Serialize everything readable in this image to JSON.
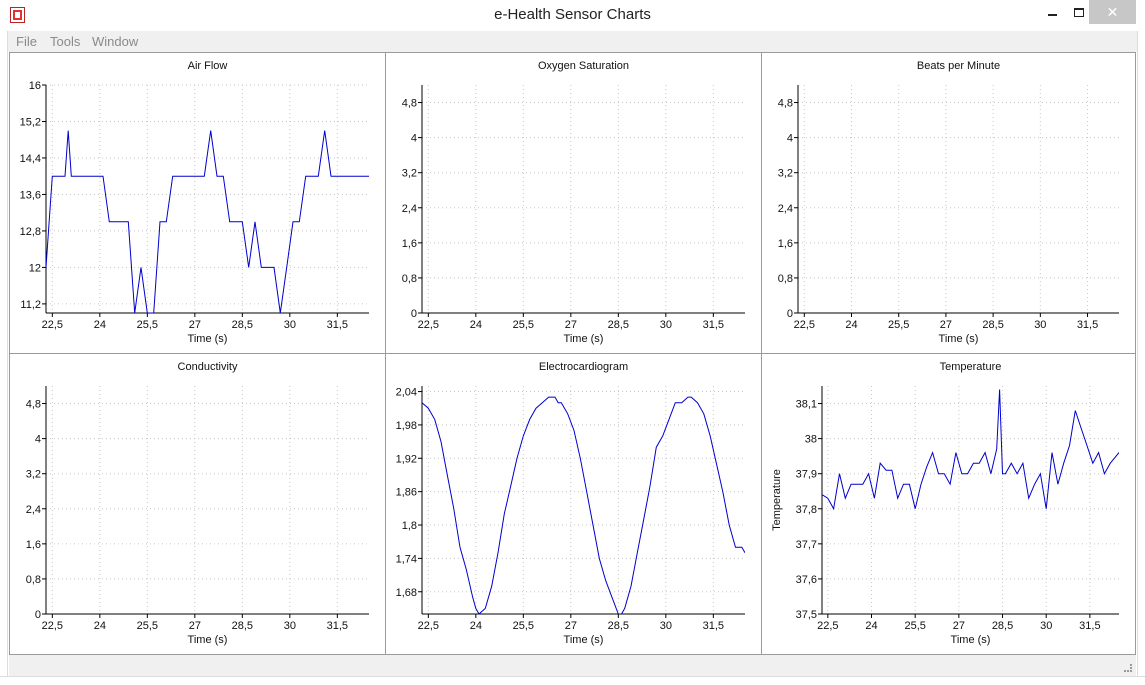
{
  "window": {
    "title": "e-Health Sensor Charts",
    "minimize_icon": "minimize-icon",
    "maximize_icon": "maximize-icon",
    "close_label": "✕"
  },
  "menu": {
    "file": "File",
    "tools": "Tools",
    "window": "Window"
  },
  "colors": {
    "series": "#0000cc",
    "grid": "#c8c8c8"
  },
  "chart_data": [
    {
      "type": "line",
      "title": "Air Flow",
      "xlabel": "Time (s)",
      "ylabel": "",
      "xlim": [
        22.3,
        32.5
      ],
      "ylim": [
        11.0,
        16.0
      ],
      "xticks": [
        22.5,
        24,
        25.5,
        27,
        28.5,
        30,
        31.5
      ],
      "xtick_labels": [
        "22,5",
        "24",
        "25,5",
        "27",
        "28,5",
        "30",
        "31,5"
      ],
      "yticks": [
        11.2,
        12,
        12.8,
        13.6,
        14.4,
        15.2,
        16
      ],
      "ytick_labels": [
        "11,2",
        "12",
        "12,8",
        "13,6",
        "14,4",
        "15,2",
        "16"
      ],
      "grid": true,
      "series": [
        {
          "x": [
            22.3,
            22.5,
            22.9,
            23.0,
            23.1,
            23.3,
            23.5,
            23.7,
            23.9,
            24.1,
            24.3,
            24.5,
            24.7,
            24.9,
            25.1,
            25.3,
            25.5,
            25.6,
            25.7,
            25.9,
            26.1,
            26.3,
            26.5,
            26.7,
            26.9,
            27.1,
            27.3,
            27.5,
            27.7,
            27.8,
            27.9,
            28.1,
            28.3,
            28.5,
            28.7,
            28.9,
            29.1,
            29.2,
            29.3,
            29.5,
            29.7,
            29.9,
            30.1,
            30.3,
            30.5,
            30.7,
            30.9,
            31.1,
            31.3,
            31.5,
            31.6,
            31.7,
            31.9,
            32.1,
            32.3,
            32.5
          ],
          "y": [
            12.0,
            14.0,
            14.0,
            15.0,
            14.0,
            14.0,
            14.0,
            14.0,
            14.0,
            14.0,
            13.0,
            13.0,
            13.0,
            13.0,
            11.0,
            12.0,
            11.0,
            11.0,
            11.0,
            13.0,
            13.0,
            14.0,
            14.0,
            14.0,
            14.0,
            14.0,
            14.0,
            15.0,
            14.0,
            14.0,
            14.0,
            13.0,
            13.0,
            13.0,
            12.0,
            13.0,
            12.0,
            12.0,
            12.0,
            12.0,
            11.0,
            12.0,
            13.0,
            13.0,
            14.0,
            14.0,
            14.0,
            15.0,
            14.0,
            14.0,
            14.0,
            14.0,
            14.0,
            14.0,
            14.0,
            14.0
          ]
        }
      ]
    },
    {
      "type": "line",
      "title": "Oxygen Saturation",
      "xlabel": "Time (s)",
      "ylabel": "",
      "xlim": [
        22.3,
        32.5
      ],
      "ylim": [
        0,
        5.2
      ],
      "xticks": [
        22.5,
        24,
        25.5,
        27,
        28.5,
        30,
        31.5
      ],
      "xtick_labels": [
        "22,5",
        "24",
        "25,5",
        "27",
        "28,5",
        "30",
        "31,5"
      ],
      "yticks": [
        0,
        0.8,
        1.6,
        2.4,
        3.2,
        4,
        4.8
      ],
      "ytick_labels": [
        "0",
        "0,8",
        "1,6",
        "2,4",
        "3,2",
        "4",
        "4,8"
      ],
      "grid": true,
      "series": []
    },
    {
      "type": "line",
      "title": "Beats per Minute",
      "xlabel": "Time (s)",
      "ylabel": "",
      "xlim": [
        22.3,
        32.5
      ],
      "ylim": [
        0,
        5.2
      ],
      "xticks": [
        22.5,
        24,
        25.5,
        27,
        28.5,
        30,
        31.5
      ],
      "xtick_labels": [
        "22,5",
        "24",
        "25,5",
        "27",
        "28,5",
        "30",
        "31,5"
      ],
      "yticks": [
        0,
        0.8,
        1.6,
        2.4,
        3.2,
        4,
        4.8
      ],
      "ytick_labels": [
        "0",
        "0,8",
        "1,6",
        "2,4",
        "3,2",
        "4",
        "4,8"
      ],
      "grid": true,
      "series": []
    },
    {
      "type": "line",
      "title": "Conductivity",
      "xlabel": "Time (s)",
      "ylabel": "",
      "xlim": [
        22.3,
        32.5
      ],
      "ylim": [
        0,
        5.2
      ],
      "xticks": [
        22.5,
        24,
        25.5,
        27,
        28.5,
        30,
        31.5
      ],
      "xtick_labels": [
        "22,5",
        "24",
        "25,5",
        "27",
        "28,5",
        "30",
        "31,5"
      ],
      "yticks": [
        0,
        0.8,
        1.6,
        2.4,
        3.2,
        4,
        4.8
      ],
      "ytick_labels": [
        "0",
        "0,8",
        "1,6",
        "2,4",
        "3,2",
        "4",
        "4,8"
      ],
      "grid": true,
      "series": []
    },
    {
      "type": "line",
      "title": "Electrocardiogram",
      "xlabel": "Time (s)",
      "ylabel": "",
      "xlim": [
        22.3,
        32.5
      ],
      "ylim": [
        1.64,
        2.05
      ],
      "xticks": [
        22.5,
        24,
        25.5,
        27,
        28.5,
        30,
        31.5
      ],
      "xtick_labels": [
        "22,5",
        "24",
        "25,5",
        "27",
        "28,5",
        "30",
        "31,5"
      ],
      "yticks": [
        1.68,
        1.74,
        1.8,
        1.86,
        1.92,
        1.98,
        2.04
      ],
      "ytick_labels": [
        "1,68",
        "1,74",
        "1,8",
        "1,86",
        "1,92",
        "1,98",
        "2,04"
      ],
      "grid": true,
      "series": [
        {
          "x": [
            22.3,
            22.5,
            22.7,
            22.9,
            23.1,
            23.3,
            23.5,
            23.7,
            23.9,
            24.0,
            24.1,
            24.3,
            24.5,
            24.7,
            24.9,
            25.1,
            25.3,
            25.5,
            25.7,
            25.9,
            26.1,
            26.3,
            26.5,
            26.6,
            26.7,
            26.9,
            27.1,
            27.3,
            27.5,
            27.7,
            27.9,
            28.1,
            28.3,
            28.5,
            28.6,
            28.7,
            28.9,
            29.1,
            29.3,
            29.5,
            29.7,
            29.9,
            30.1,
            30.3,
            30.5,
            30.7,
            30.8,
            31.0,
            31.2,
            31.4,
            31.6,
            31.8,
            32.0,
            32.2,
            32.4,
            32.5
          ],
          "y": [
            2.02,
            2.01,
            1.99,
            1.95,
            1.89,
            1.83,
            1.76,
            1.72,
            1.67,
            1.65,
            1.64,
            1.65,
            1.69,
            1.75,
            1.82,
            1.87,
            1.92,
            1.96,
            1.99,
            2.01,
            2.02,
            2.03,
            2.03,
            2.02,
            2.02,
            2.0,
            1.97,
            1.92,
            1.86,
            1.8,
            1.74,
            1.7,
            1.67,
            1.64,
            1.64,
            1.65,
            1.69,
            1.75,
            1.81,
            1.87,
            1.94,
            1.96,
            1.99,
            2.02,
            2.02,
            2.03,
            2.03,
            2.02,
            2.0,
            1.96,
            1.91,
            1.86,
            1.8,
            1.76,
            1.76,
            1.75
          ]
        }
      ]
    },
    {
      "type": "line",
      "title": "Temperature",
      "xlabel": "Time (s)",
      "ylabel": "Temperature",
      "xlim": [
        22.3,
        32.5
      ],
      "ylim": [
        37.5,
        38.15
      ],
      "xticks": [
        22.5,
        24,
        25.5,
        27,
        28.5,
        30,
        31.5
      ],
      "xtick_labels": [
        "22,5",
        "24",
        "25,5",
        "27",
        "28,5",
        "30",
        "31,5"
      ],
      "yticks": [
        37.5,
        37.6,
        37.7,
        37.8,
        37.9,
        38,
        38.1
      ],
      "ytick_labels": [
        "37,5",
        "37,6",
        "37,7",
        "37,8",
        "37,9",
        "38",
        "38,1"
      ],
      "grid": true,
      "series": [
        {
          "x": [
            22.3,
            22.5,
            22.7,
            22.9,
            23.1,
            23.3,
            23.5,
            23.7,
            23.9,
            24.1,
            24.3,
            24.5,
            24.7,
            24.9,
            25.1,
            25.3,
            25.5,
            25.7,
            25.9,
            26.1,
            26.3,
            26.5,
            26.7,
            26.9,
            27.1,
            27.3,
            27.5,
            27.7,
            27.9,
            28.1,
            28.3,
            28.4,
            28.5,
            28.6,
            28.8,
            29.0,
            29.2,
            29.4,
            29.6,
            29.8,
            30.0,
            30.2,
            30.4,
            30.6,
            30.8,
            31.0,
            31.2,
            31.4,
            31.6,
            31.8,
            32.0,
            32.2,
            32.5
          ],
          "y": [
            37.84,
            37.83,
            37.8,
            37.9,
            37.83,
            37.87,
            37.87,
            37.87,
            37.9,
            37.83,
            37.93,
            37.91,
            37.91,
            37.83,
            37.87,
            37.87,
            37.8,
            37.87,
            37.92,
            37.96,
            37.9,
            37.9,
            37.87,
            37.96,
            37.9,
            37.9,
            37.93,
            37.93,
            37.96,
            37.9,
            37.97,
            38.14,
            37.9,
            37.9,
            37.93,
            37.9,
            37.93,
            37.83,
            37.87,
            37.9,
            37.8,
            37.96,
            37.87,
            37.93,
            37.98,
            38.08,
            38.03,
            37.98,
            37.93,
            37.96,
            37.9,
            37.93,
            37.96
          ]
        }
      ]
    }
  ]
}
